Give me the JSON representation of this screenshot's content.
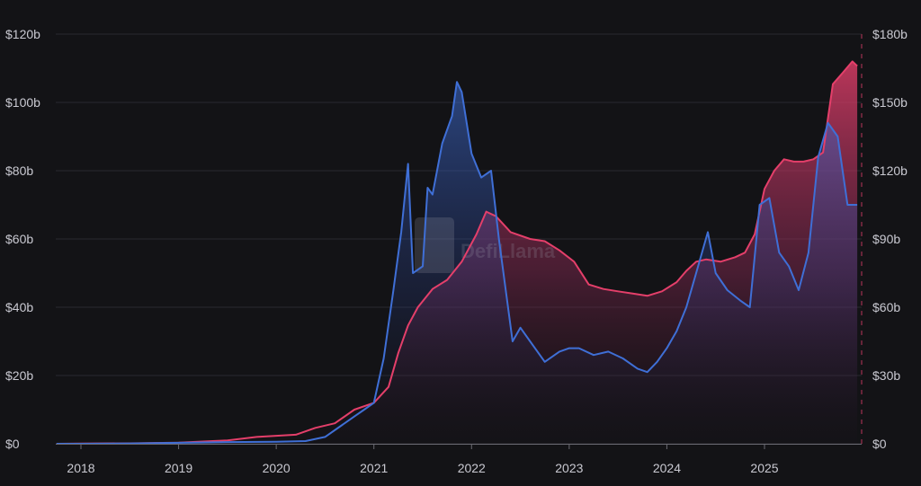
{
  "watermark": {
    "text": "DefiLlama"
  },
  "chart_data": {
    "type": "area",
    "title": "",
    "xlabel": "",
    "ylabel": "",
    "grid": true,
    "legend": "none",
    "x_ticks": [
      "2018",
      "2019",
      "2020",
      "2021",
      "2022",
      "2023",
      "2024",
      "2025"
    ],
    "y_left": {
      "range": [
        0,
        120
      ],
      "ticks": [
        0,
        20,
        40,
        60,
        80,
        100,
        120
      ],
      "tick_labels": [
        "$0",
        "$20b",
        "$40b",
        "$60b",
        "$80b",
        "$100b",
        "$120b"
      ]
    },
    "y_right": {
      "range": [
        0,
        180
      ],
      "ticks": [
        0,
        30,
        60,
        90,
        120,
        150,
        180
      ],
      "tick_labels": [
        "$0",
        "$30b",
        "$60b",
        "$90b",
        "$120b",
        "$150b",
        "$180b"
      ]
    },
    "series": [
      {
        "axis": "left",
        "color": "#3f6fd6",
        "x": [
          2017.75,
          2018.0,
          2018.5,
          2019.0,
          2019.5,
          2020.0,
          2020.3,
          2020.5,
          2020.65,
          2020.8,
          2020.9,
          2021.0,
          2021.1,
          2021.2,
          2021.28,
          2021.35,
          2021.4,
          2021.5,
          2021.55,
          2021.6,
          2021.7,
          2021.8,
          2021.85,
          2021.9,
          2022.0,
          2022.1,
          2022.2,
          2022.28,
          2022.35,
          2022.42,
          2022.5,
          2022.6,
          2022.75,
          2022.9,
          2023.0,
          2023.1,
          2023.25,
          2023.4,
          2023.55,
          2023.7,
          2023.8,
          2023.9,
          2024.0,
          2024.1,
          2024.2,
          2024.3,
          2024.42,
          2024.5,
          2024.62,
          2024.75,
          2024.85,
          2024.95,
          2025.05,
          2025.15,
          2025.25,
          2025.35,
          2025.45,
          2025.55,
          2025.65,
          2025.75,
          2025.85,
          2025.95
        ],
        "values": [
          0,
          0,
          0.1,
          0.3,
          0.5,
          0.6,
          0.8,
          2,
          5,
          8,
          10,
          12,
          25,
          45,
          62,
          82,
          50,
          52,
          75,
          73,
          88,
          96,
          106,
          103,
          85,
          78,
          80,
          60,
          45,
          30,
          34,
          30,
          24,
          27,
          28,
          28,
          26,
          27,
          25,
          22,
          21,
          24,
          28,
          33,
          40,
          50,
          62,
          50,
          45,
          42,
          40,
          70,
          72,
          56,
          52,
          45,
          56,
          84,
          94,
          90,
          70,
          70
        ]
      },
      {
        "axis": "right",
        "color": "#e43f6a",
        "x": [
          2017.75,
          2018.0,
          2018.5,
          2019.0,
          2019.5,
          2019.8,
          2020.0,
          2020.2,
          2020.4,
          2020.6,
          2020.8,
          2021.0,
          2021.15,
          2021.25,
          2021.35,
          2021.45,
          2021.6,
          2021.75,
          2021.9,
          2022.05,
          2022.15,
          2022.25,
          2022.4,
          2022.6,
          2022.75,
          2022.9,
          2023.05,
          2023.2,
          2023.35,
          2023.5,
          2023.65,
          2023.8,
          2023.95,
          2024.1,
          2024.2,
          2024.3,
          2024.4,
          2024.55,
          2024.7,
          2024.8,
          2024.9,
          2025.0,
          2025.1,
          2025.2,
          2025.3,
          2025.4,
          2025.5,
          2025.6,
          2025.7,
          2025.8,
          2025.9,
          2025.95
        ],
        "values": [
          0,
          0.1,
          0.2,
          0.5,
          1.5,
          3,
          3.5,
          4,
          7,
          9,
          15,
          18,
          25,
          40,
          52,
          60,
          68,
          72,
          80,
          92,
          102,
          100,
          93,
          90,
          89,
          85,
          80,
          70,
          68,
          67,
          66,
          65,
          67,
          71,
          76,
          80,
          81,
          80,
          82,
          84,
          92,
          112,
          120,
          125,
          124,
          124,
          125,
          128,
          158,
          163,
          168,
          166
        ]
      }
    ]
  }
}
